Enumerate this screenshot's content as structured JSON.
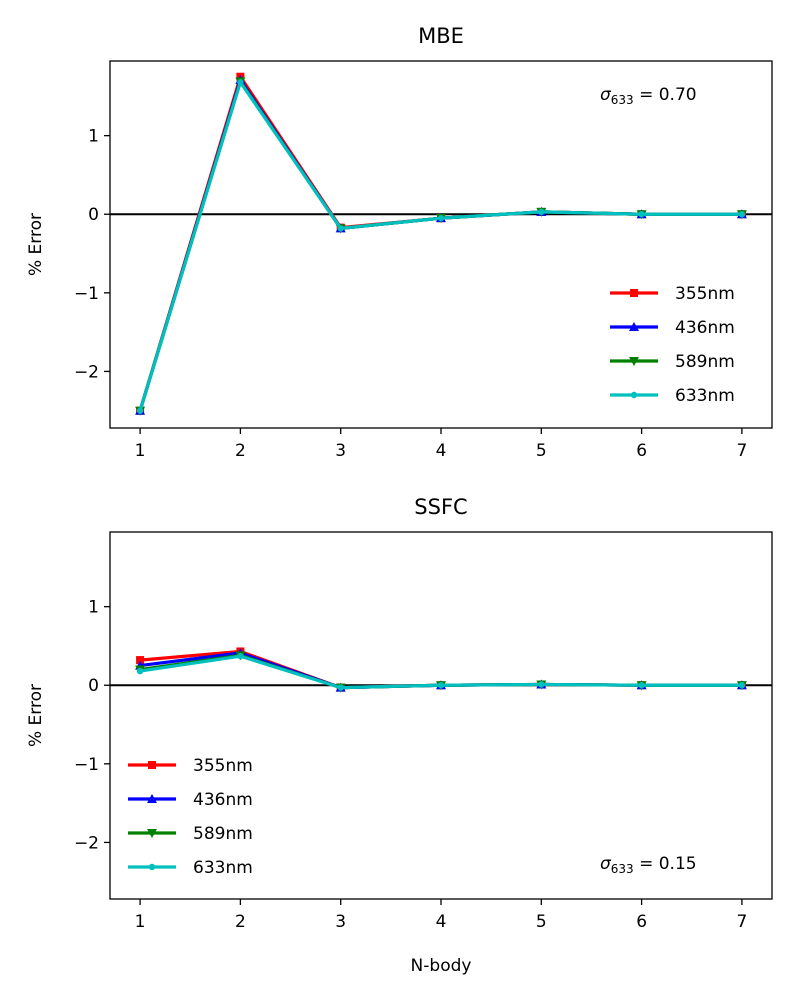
{
  "chart_data": [
    {
      "type": "line",
      "title": "MBE",
      "xlabel": "",
      "ylabel": "% Error",
      "x": [
        1,
        2,
        3,
        4,
        5,
        6,
        7
      ],
      "xlim": [
        0.7,
        7.3
      ],
      "ylim": [
        -2.72,
        1.95
      ],
      "xticks": [
        "1",
        "2",
        "3",
        "4",
        "5",
        "6",
        "7"
      ],
      "yticks": [
        {
          "value": 1,
          "label": "1"
        },
        {
          "value": 0,
          "label": "0"
        },
        {
          "value": -1,
          "label": "−1"
        },
        {
          "value": -2,
          "label": "−2"
        }
      ],
      "zero_line": true,
      "grid": false,
      "legend_position": "lower-right",
      "annotation": {
        "symbol": "σ",
        "subscript": "633",
        "text": " = 0.70",
        "position": "top-right"
      },
      "series": [
        {
          "name": "355nm",
          "color": "#ff0000",
          "marker": "square",
          "values": [
            -2.5,
            1.75,
            -0.17,
            -0.05,
            0.03,
            0.0,
            0.0
          ]
        },
        {
          "name": "436nm",
          "color": "#0000ff",
          "marker": "triangle-up",
          "values": [
            -2.5,
            1.71,
            -0.18,
            -0.05,
            0.03,
            0.0,
            0.0
          ]
        },
        {
          "name": "589nm",
          "color": "#008000",
          "marker": "triangle-down",
          "values": [
            -2.5,
            1.69,
            -0.18,
            -0.05,
            0.03,
            0.0,
            0.0
          ]
        },
        {
          "name": "633nm",
          "color": "#00bfbf",
          "marker": "circle",
          "values": [
            -2.5,
            1.68,
            -0.18,
            -0.05,
            0.03,
            0.0,
            0.0
          ]
        }
      ]
    },
    {
      "type": "line",
      "title": "SSFC",
      "xlabel": "N-body",
      "ylabel": "% Error",
      "x": [
        1,
        2,
        3,
        4,
        5,
        6,
        7
      ],
      "xlim": [
        0.7,
        7.3
      ],
      "ylim": [
        -2.72,
        1.95
      ],
      "xticks": [
        "1",
        "2",
        "3",
        "4",
        "5",
        "6",
        "7"
      ],
      "yticks": [
        {
          "value": 1,
          "label": "1"
        },
        {
          "value": 0,
          "label": "0"
        },
        {
          "value": -1,
          "label": "−1"
        },
        {
          "value": -2,
          "label": "−2"
        }
      ],
      "zero_line": true,
      "grid": false,
      "legend_position": "lower-left",
      "annotation": {
        "symbol": "σ",
        "subscript": "633",
        "text": " = 0.15",
        "position": "bottom-right"
      },
      "series": [
        {
          "name": "355nm",
          "color": "#ff0000",
          "marker": "square",
          "values": [
            0.32,
            0.43,
            -0.03,
            0.0,
            0.01,
            0.0,
            0.0
          ]
        },
        {
          "name": "436nm",
          "color": "#0000ff",
          "marker": "triangle-up",
          "values": [
            0.25,
            0.41,
            -0.03,
            0.0,
            0.01,
            0.0,
            0.0
          ]
        },
        {
          "name": "589nm",
          "color": "#008000",
          "marker": "triangle-down",
          "values": [
            0.2,
            0.38,
            -0.03,
            0.0,
            0.01,
            0.0,
            0.0
          ]
        },
        {
          "name": "633nm",
          "color": "#00bfbf",
          "marker": "circle",
          "values": [
            0.18,
            0.37,
            -0.03,
            0.0,
            0.01,
            0.0,
            0.0
          ]
        }
      ]
    }
  ]
}
